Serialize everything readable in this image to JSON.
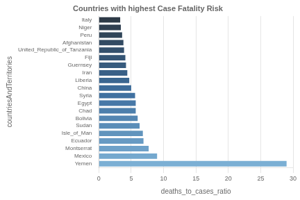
{
  "chart_data": {
    "type": "bar",
    "orientation": "horizontal",
    "title": "Countries with highest Case Fatality Risk",
    "xlabel": "deaths_to_cases_ratio",
    "ylabel": "countriesAndTerritories",
    "categories": [
      "Italy",
      "Niger",
      "Peru",
      "Afghanistan",
      "United_Republic_of_Tanzania",
      "Fiji",
      "Guernsey",
      "Iran",
      "Liberia",
      "China",
      "Syria",
      "Egypt",
      "Chad",
      "Bolivia",
      "Sudan",
      "Isle_of_Man",
      "Ecuador",
      "Montserrat",
      "Mexico",
      "Yemen"
    ],
    "values": [
      3.3,
      3.4,
      3.6,
      3.8,
      3.9,
      4.1,
      4.2,
      4.4,
      4.7,
      5.0,
      5.6,
      5.7,
      5.7,
      6.0,
      6.3,
      6.8,
      6.9,
      7.7,
      9.0,
      29.0
    ],
    "colors": [
      "#2d3a47",
      "#2f3f50",
      "#304559",
      "#324a62",
      "#34506c",
      "#355575",
      "#375b7e",
      "#396087",
      "#3a6690",
      "#3c6b99",
      "#4071a1",
      "#4778a7",
      "#4d7fac",
      "#5486b2",
      "#5a8db8",
      "#6194bd",
      "#679ac3",
      "#6ea1c9",
      "#74a8ce",
      "#7bafd4"
    ],
    "xlim": [
      0,
      30
    ],
    "xticks": [
      0,
      5,
      10,
      15,
      20,
      25,
      30
    ],
    "grid": true
  }
}
